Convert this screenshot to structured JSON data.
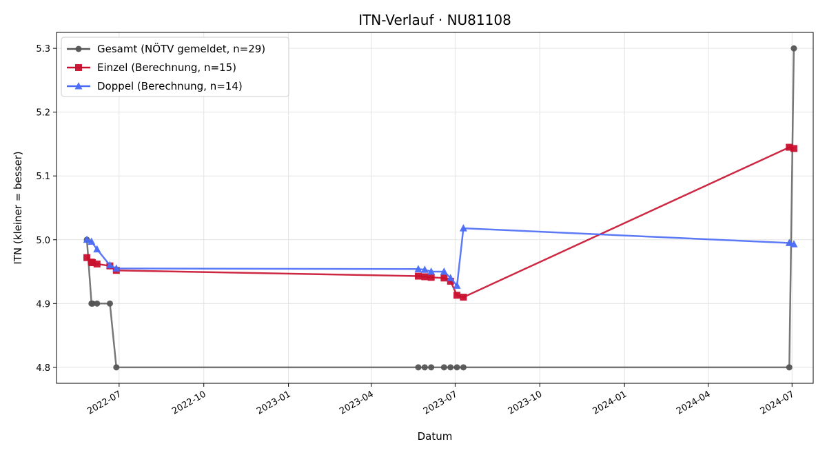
{
  "chart_data": {
    "type": "line",
    "title": "ITN-Verlauf · NU81108",
    "xlabel": "Datum",
    "ylabel": "ITN  (kleiner = besser)",
    "xlim": [
      "2022-04-24",
      "2024-07-24"
    ],
    "ylim": [
      4.775,
      5.325
    ],
    "x_ticks": [
      "2022-07",
      "2022-10",
      "2023-01",
      "2023-04",
      "2023-07",
      "2023-10",
      "2024-01",
      "2024-04",
      "2024-07"
    ],
    "y_ticks": [
      "4.8",
      "4.9",
      "5.0",
      "5.1",
      "5.2",
      "5.3"
    ],
    "grid": true,
    "legend_position": "top-left",
    "series": [
      {
        "name": "Gesamt (NÖTV gemeldet, n=29)",
        "color": "#555555",
        "marker": "circle",
        "points": [
          {
            "x": "2022-05-27",
            "y": 5.0
          },
          {
            "x": "2022-06-01",
            "y": 4.9
          },
          {
            "x": "2022-06-02",
            "y": 4.9
          },
          {
            "x": "2022-06-07",
            "y": 4.9
          },
          {
            "x": "2022-06-21",
            "y": 4.9
          },
          {
            "x": "2022-06-28",
            "y": 4.8
          },
          {
            "x": "2023-05-22",
            "y": 4.8
          },
          {
            "x": "2023-05-29",
            "y": 4.8
          },
          {
            "x": "2023-06-05",
            "y": 4.8
          },
          {
            "x": "2023-06-19",
            "y": 4.8
          },
          {
            "x": "2023-06-26",
            "y": 4.8
          },
          {
            "x": "2023-07-03",
            "y": 4.8
          },
          {
            "x": "2023-07-10",
            "y": 4.8
          },
          {
            "x": "2024-06-28",
            "y": 4.8
          },
          {
            "x": "2024-07-03",
            "y": 5.3
          }
        ]
      },
      {
        "name": "Einzel (Berechnung, n=15)",
        "color": "#c8102e",
        "marker": "square",
        "points": [
          {
            "x": "2022-05-27",
            "y": 4.972
          },
          {
            "x": "2022-06-01",
            "y": 4.965
          },
          {
            "x": "2022-06-02",
            "y": 4.964
          },
          {
            "x": "2022-06-07",
            "y": 4.962
          },
          {
            "x": "2022-06-21",
            "y": 4.959
          },
          {
            "x": "2022-06-28",
            "y": 4.952
          },
          {
            "x": "2023-05-22",
            "y": 4.943
          },
          {
            "x": "2023-05-29",
            "y": 4.942
          },
          {
            "x": "2023-06-05",
            "y": 4.941
          },
          {
            "x": "2023-06-19",
            "y": 4.94
          },
          {
            "x": "2023-06-26",
            "y": 4.935
          },
          {
            "x": "2023-07-03",
            "y": 4.913
          },
          {
            "x": "2023-07-10",
            "y": 4.91
          },
          {
            "x": "2024-06-28",
            "y": 5.145
          },
          {
            "x": "2024-07-03",
            "y": 5.143
          }
        ]
      },
      {
        "name": "Doppel (Berechnung, n=14)",
        "color": "#4a6cf7",
        "marker": "triangle",
        "points": [
          {
            "x": "2022-05-27",
            "y": 5.0
          },
          {
            "x": "2022-06-01",
            "y": 4.997
          },
          {
            "x": "2022-06-07",
            "y": 4.985
          },
          {
            "x": "2022-06-21",
            "y": 4.96
          },
          {
            "x": "2022-06-28",
            "y": 4.955
          },
          {
            "x": "2023-05-22",
            "y": 4.954
          },
          {
            "x": "2023-05-29",
            "y": 4.953
          },
          {
            "x": "2023-06-05",
            "y": 4.95
          },
          {
            "x": "2023-06-19",
            "y": 4.95
          },
          {
            "x": "2023-06-26",
            "y": 4.94
          },
          {
            "x": "2023-07-03",
            "y": 4.928
          },
          {
            "x": "2023-07-10",
            "y": 5.018
          },
          {
            "x": "2024-06-28",
            "y": 4.995
          },
          {
            "x": "2024-07-03",
            "y": 4.993
          }
        ]
      }
    ]
  }
}
